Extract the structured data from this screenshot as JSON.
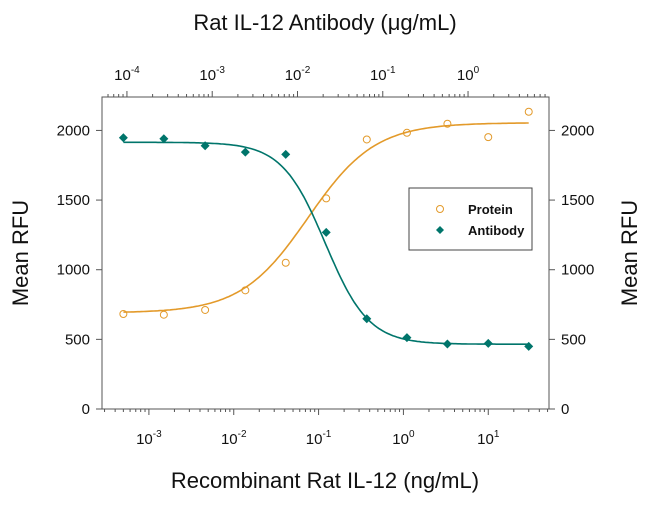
{
  "chart_data": {
    "type": "scatter",
    "title": "",
    "top_xlabel": "Rat IL-12 Antibody (μg/mL)",
    "xlabel": "Recombinant Rat IL-12 (ng/mL)",
    "ylabel": "Mean RFU",
    "ylabel_right": "Mean RFU",
    "xscale": "log",
    "xlim": [
      0.00028,
      52
    ],
    "top_xlim": [
      5.1e-05,
      8.9
    ],
    "ylim": [
      0,
      2240
    ],
    "yticks": [
      0,
      500,
      1000,
      1500,
      2000
    ],
    "xticks": [
      {
        "base": "10",
        "exp": "-3",
        "v": 0.001
      },
      {
        "base": "10",
        "exp": "-2",
        "v": 0.01
      },
      {
        "base": "10",
        "exp": "-1",
        "v": 0.1
      },
      {
        "base": "10",
        "exp": "0",
        "v": 1
      },
      {
        "base": "10",
        "exp": "1",
        "v": 10
      }
    ],
    "top_xticks": [
      {
        "base": "10",
        "exp": "-4",
        "v": 0.0001
      },
      {
        "base": "10",
        "exp": "-3",
        "v": 0.001
      },
      {
        "base": "10",
        "exp": "-2",
        "v": 0.01
      },
      {
        "base": "10",
        "exp": "-1",
        "v": 0.1
      },
      {
        "base": "10",
        "exp": "0",
        "v": 1
      }
    ],
    "grid": false,
    "legend_placement": "right",
    "x": [
      0.0005,
      0.0015,
      0.0046,
      0.0137,
      0.041,
      0.123,
      0.37,
      1.1,
      3.3,
      10,
      30
    ],
    "series": [
      {
        "name": "Protein",
        "marker": "open-circle",
        "color": "#E39A2A",
        "values": [
          682,
          677,
          711,
          852,
          1050,
          1512,
          1935,
          1983,
          2048,
          1952,
          2134
        ],
        "fit": {
          "bottom": 690,
          "top": 2055,
          "ec50": 0.075,
          "hill": 1.1
        }
      },
      {
        "name": "Antibody",
        "marker": "filled-diamond",
        "color": "#00756B",
        "values": [
          1947,
          1940,
          1890,
          1844,
          1828,
          1268,
          648,
          512,
          467,
          471,
          450
        ],
        "fit": {
          "bottom": 465,
          "top": 1915,
          "ec50": 0.12,
          "hill": -1.7
        }
      }
    ]
  }
}
